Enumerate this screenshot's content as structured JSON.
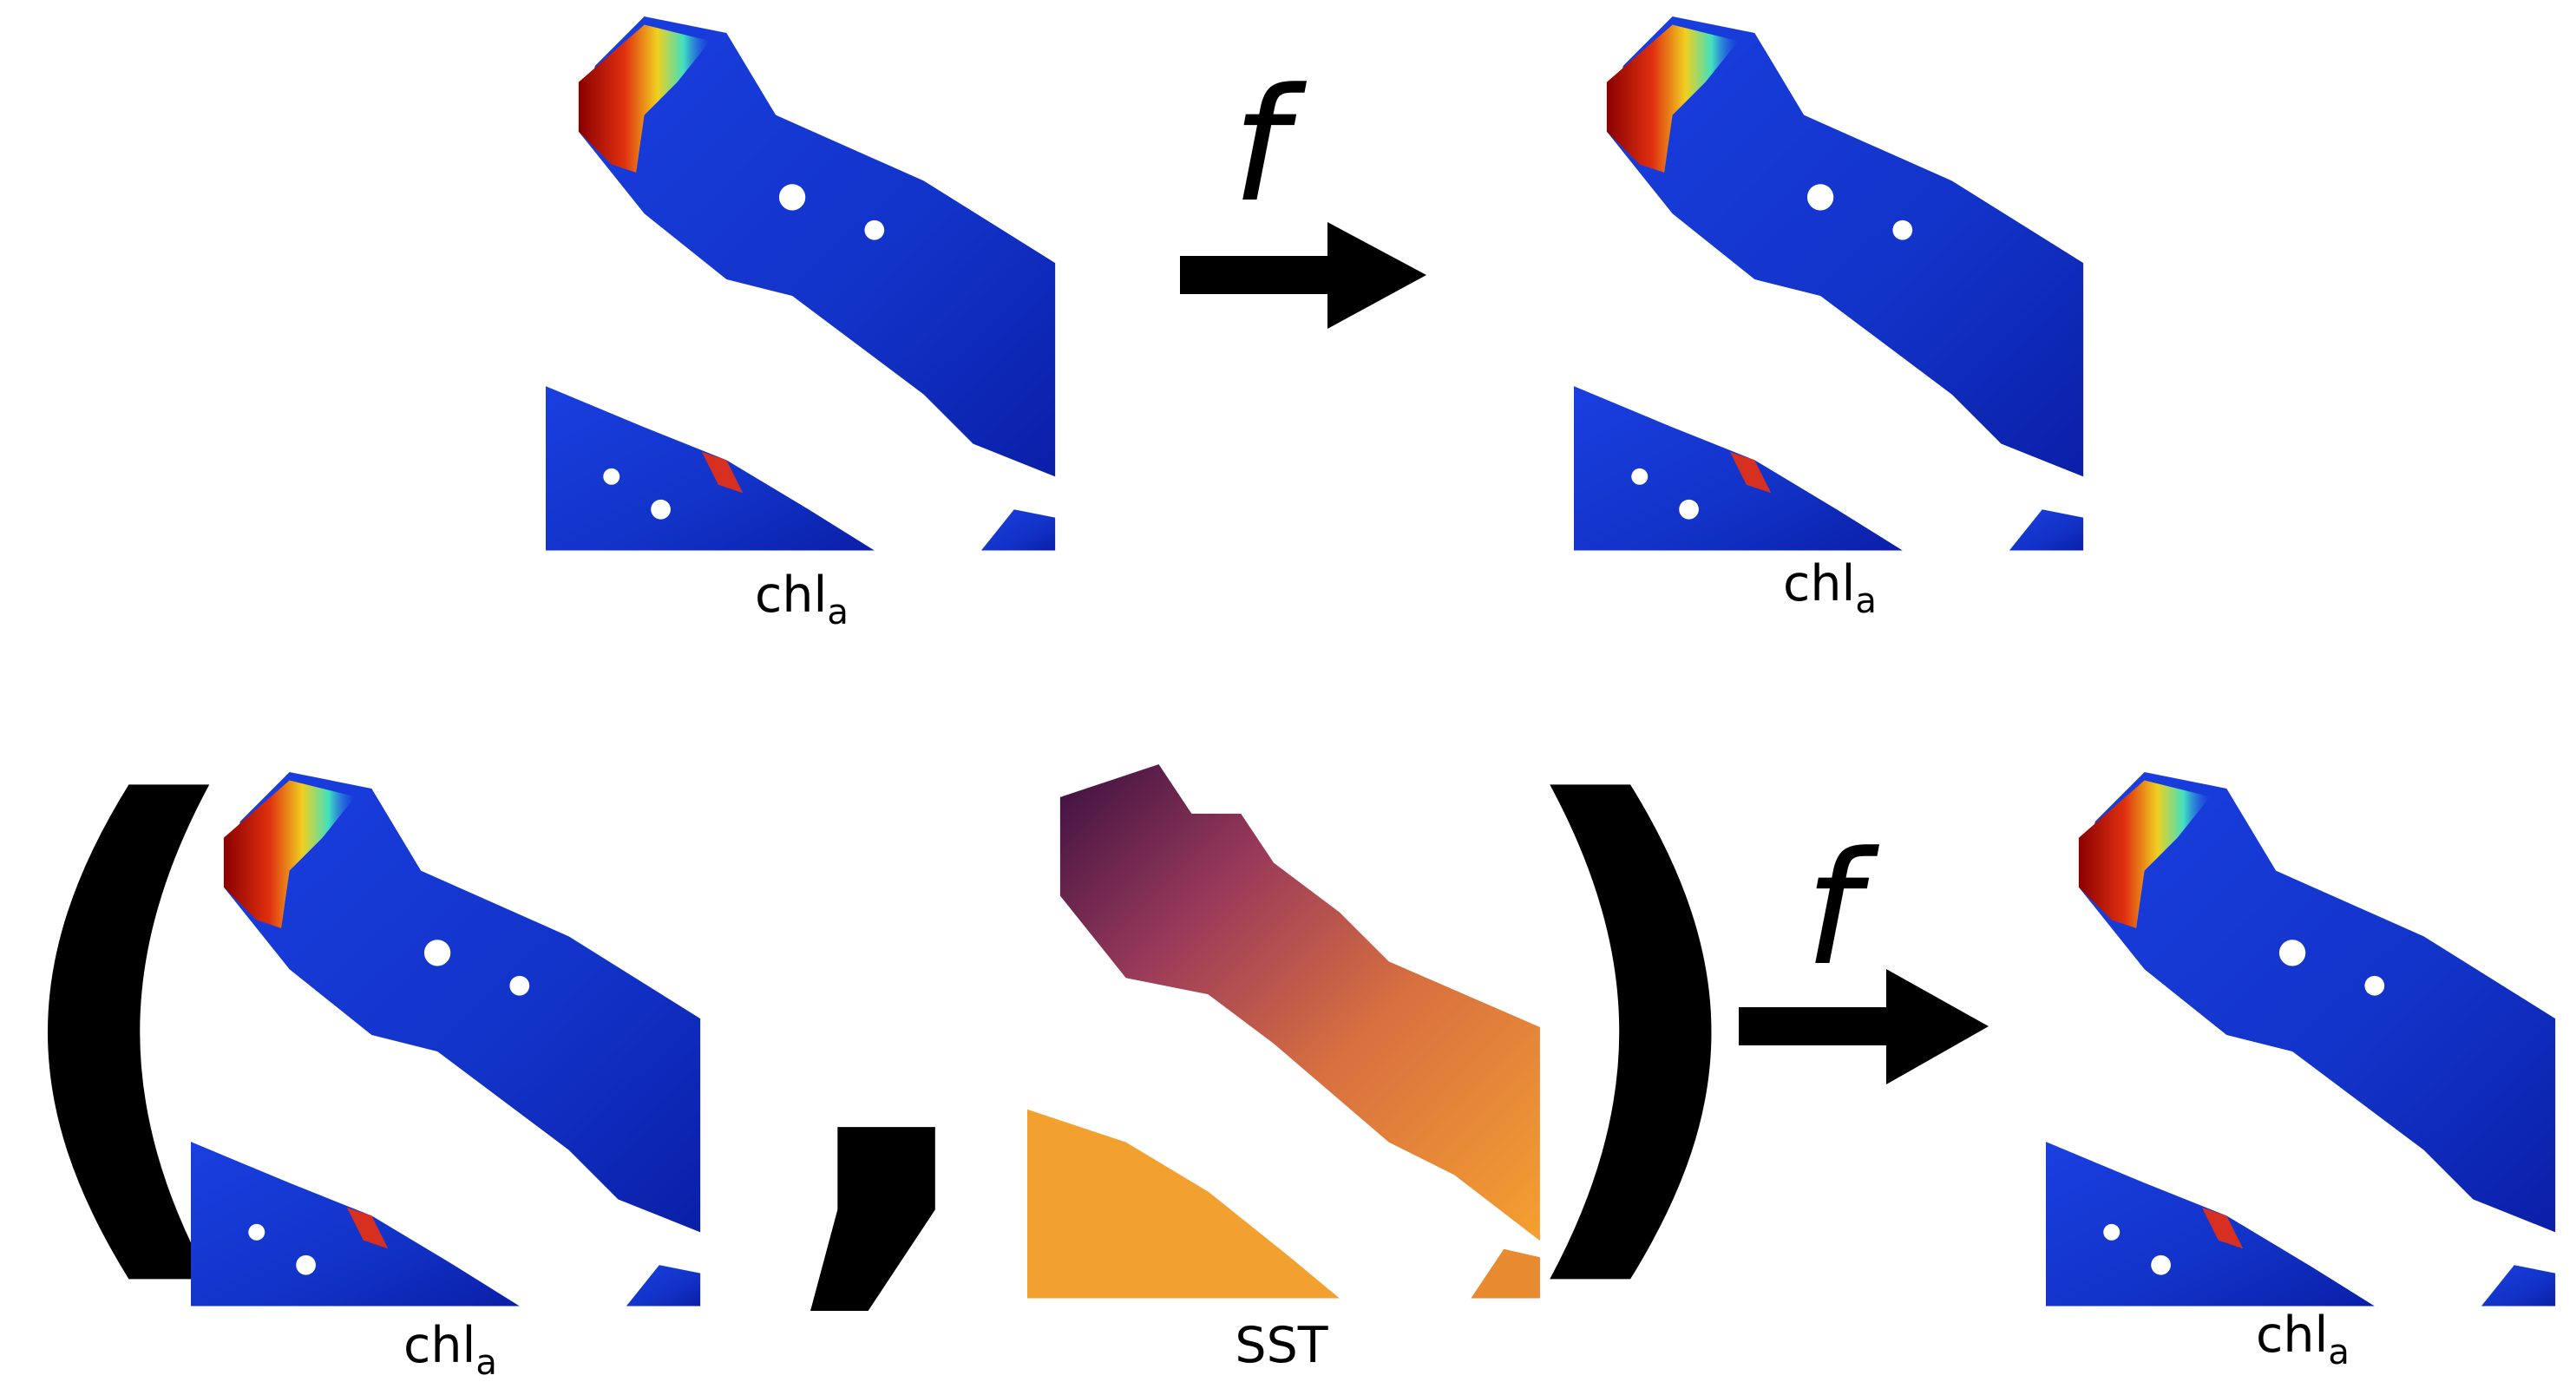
{
  "top_row": {
    "input_label": {
      "text": "chl",
      "subscript": "a"
    },
    "function": "f",
    "output_label": {
      "text": "chl",
      "subscript": "a"
    }
  },
  "bottom_row": {
    "open_paren": "(",
    "input_labels": [
      {
        "text": "chl",
        "subscript": "a"
      },
      {
        "text": "SST"
      }
    ],
    "comma": ",",
    "close_paren": ")",
    "function": "f",
    "output_label": {
      "text": "chl",
      "subscript": "a"
    }
  }
}
